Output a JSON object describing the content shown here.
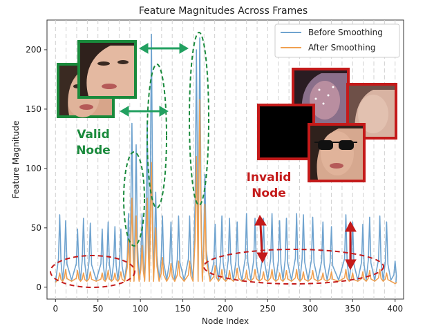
{
  "chart_data": {
    "type": "line",
    "title": "Feature Magnitudes Across Frames",
    "xlabel": "Node Index",
    "ylabel": "Feature Magnitude",
    "xlim": [
      -10,
      410
    ],
    "ylim": [
      -10,
      225
    ],
    "xticks": [
      0,
      50,
      100,
      150,
      200,
      250,
      300,
      350,
      400
    ],
    "yticks": [
      0,
      50,
      100,
      150,
      200
    ],
    "grid": "vertical dashed lines every 12.5 node indices",
    "legend_position": "top-right",
    "series": [
      {
        "name": "Before Smoothing",
        "color": "#6fa3cf",
        "peaks": [
          {
            "x": 5,
            "y": 61
          },
          {
            "x": 12,
            "y": 56
          },
          {
            "x": 26,
            "y": 49
          },
          {
            "x": 33,
            "y": 58
          },
          {
            "x": 41,
            "y": 54
          },
          {
            "x": 55,
            "y": 49
          },
          {
            "x": 62,
            "y": 55
          },
          {
            "x": 70,
            "y": 51
          },
          {
            "x": 77,
            "y": 49
          },
          {
            "x": 86,
            "y": 62
          },
          {
            "x": 90,
            "y": 138
          },
          {
            "x": 95,
            "y": 120
          },
          {
            "x": 102,
            "y": 62
          },
          {
            "x": 108,
            "y": 140
          },
          {
            "x": 113,
            "y": 213
          },
          {
            "x": 118,
            "y": 80
          },
          {
            "x": 126,
            "y": 60
          },
          {
            "x": 136,
            "y": 55
          },
          {
            "x": 145,
            "y": 60
          },
          {
            "x": 158,
            "y": 60
          },
          {
            "x": 166,
            "y": 200
          },
          {
            "x": 170,
            "y": 210
          },
          {
            "x": 176,
            "y": 95
          },
          {
            "x": 188,
            "y": 53
          },
          {
            "x": 196,
            "y": 60
          },
          {
            "x": 205,
            "y": 58
          },
          {
            "x": 214,
            "y": 55
          },
          {
            "x": 225,
            "y": 62
          },
          {
            "x": 235,
            "y": 58
          },
          {
            "x": 245,
            "y": 58
          },
          {
            "x": 255,
            "y": 62
          },
          {
            "x": 264,
            "y": 56
          },
          {
            "x": 272,
            "y": 58
          },
          {
            "x": 284,
            "y": 62
          },
          {
            "x": 292,
            "y": 61
          },
          {
            "x": 303,
            "y": 59
          },
          {
            "x": 315,
            "y": 55
          },
          {
            "x": 325,
            "y": 51
          },
          {
            "x": 342,
            "y": 61
          },
          {
            "x": 350,
            "y": 55
          },
          {
            "x": 362,
            "y": 53
          },
          {
            "x": 370,
            "y": 59
          },
          {
            "x": 382,
            "y": 60
          },
          {
            "x": 390,
            "y": 55
          },
          {
            "x": 400,
            "y": 22
          }
        ]
      },
      {
        "name": "After Smoothing",
        "color": "#f0a050",
        "peaks": [
          {
            "x": 5,
            "y": 12
          },
          {
            "x": 12,
            "y": 15
          },
          {
            "x": 26,
            "y": 14
          },
          {
            "x": 33,
            "y": 12
          },
          {
            "x": 41,
            "y": 13
          },
          {
            "x": 55,
            "y": 12
          },
          {
            "x": 62,
            "y": 14
          },
          {
            "x": 70,
            "y": 12
          },
          {
            "x": 77,
            "y": 13
          },
          {
            "x": 86,
            "y": 40
          },
          {
            "x": 90,
            "y": 75
          },
          {
            "x": 95,
            "y": 60
          },
          {
            "x": 102,
            "y": 35
          },
          {
            "x": 108,
            "y": 75
          },
          {
            "x": 113,
            "y": 105
          },
          {
            "x": 118,
            "y": 50
          },
          {
            "x": 126,
            "y": 25
          },
          {
            "x": 136,
            "y": 20
          },
          {
            "x": 145,
            "y": 22
          },
          {
            "x": 158,
            "y": 22
          },
          {
            "x": 166,
            "y": 110
          },
          {
            "x": 170,
            "y": 158
          },
          {
            "x": 176,
            "y": 70
          },
          {
            "x": 188,
            "y": 18
          },
          {
            "x": 196,
            "y": 15
          },
          {
            "x": 205,
            "y": 14
          },
          {
            "x": 214,
            "y": 16
          },
          {
            "x": 225,
            "y": 14
          },
          {
            "x": 235,
            "y": 15
          },
          {
            "x": 245,
            "y": 13
          },
          {
            "x": 255,
            "y": 15
          },
          {
            "x": 264,
            "y": 12
          },
          {
            "x": 272,
            "y": 14
          },
          {
            "x": 284,
            "y": 15
          },
          {
            "x": 292,
            "y": 13
          },
          {
            "x": 303,
            "y": 14
          },
          {
            "x": 315,
            "y": 12
          },
          {
            "x": 325,
            "y": 13
          },
          {
            "x": 342,
            "y": 15
          },
          {
            "x": 350,
            "y": 12
          },
          {
            "x": 362,
            "y": 13
          },
          {
            "x": 370,
            "y": 14
          },
          {
            "x": 382,
            "y": 15
          },
          {
            "x": 390,
            "y": 12
          },
          {
            "x": 400,
            "y": 3
          }
        ]
      }
    ],
    "baseline": 4,
    "annotations": [
      {
        "text": "Valid Node",
        "color": "#1a8a3c"
      },
      {
        "text": "Invalid Node",
        "color": "#c41a1a"
      }
    ]
  },
  "colors": {
    "valid": "#1a8a3c",
    "invalid": "#c41a1a",
    "arrow_green": "#22a060",
    "arrow_red": "#c41a1a"
  }
}
